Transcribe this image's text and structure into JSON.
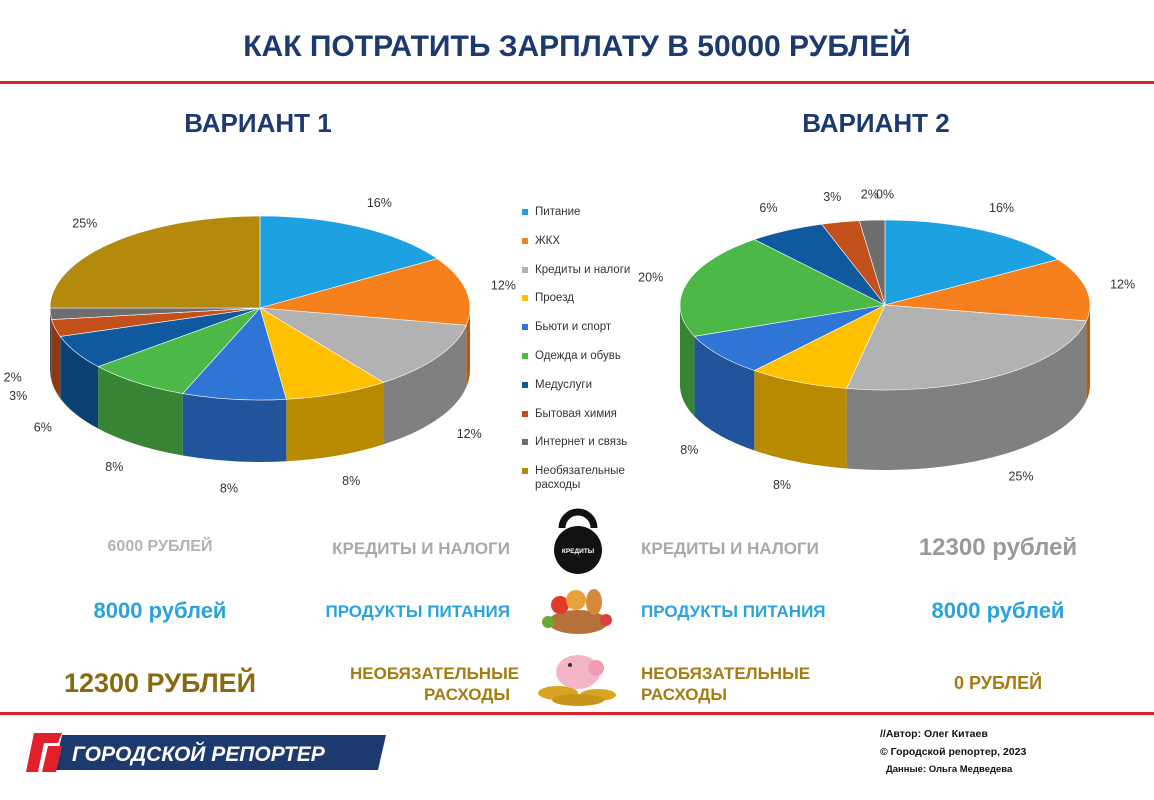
{
  "title": "КАК ПОТРАТИТЬ ЗАРПЛАТУ В 50000 РУБЛЕЙ",
  "chart_data": [
    {
      "type": "pie",
      "title": "ВАРИАНТ 1",
      "categories": [
        "Питание",
        "ЖКХ",
        "Кредиты и налоги",
        "Проезд",
        "Бьюти и спорт",
        "Одежда и обувь",
        "Медуслуги",
        "Бытовая химия",
        "Интернет и связь",
        "Необязательные расходы"
      ],
      "colors": [
        "#1ea1e0",
        "#f7801e",
        "#b2b2b2",
        "#ffc000",
        "#2e75d6",
        "#4cb848",
        "#0f5a9e",
        "#c2501a",
        "#6d6d6d",
        "#b38a0e"
      ],
      "values": [
        16,
        12,
        12,
        8,
        8,
        8,
        6,
        3,
        2,
        25
      ],
      "value_labels": [
        "16%",
        "12%",
        "12%",
        "8%",
        "8%",
        "8%",
        "6%",
        "3%",
        "2%",
        "25%"
      ]
    },
    {
      "type": "pie",
      "title": "ВАРИАНТ 2",
      "values": [
        16,
        12,
        25,
        8,
        8,
        20,
        6,
        3,
        2,
        0
      ],
      "value_labels": [
        "16%",
        "12%",
        "25%",
        "8%",
        "8%",
        "20%",
        "6%",
        "3%",
        "2%",
        "0%"
      ]
    }
  ],
  "comparison": {
    "icon_text": "КРЕДИТЫ",
    "rows": [
      {
        "left_amount": "6000 РУБЛЕЙ",
        "left_label": "КРЕДИТЫ И НАЛОГИ",
        "right_label": "КРЕДИТЫ И НАЛОГИ",
        "right_amount": "12300 рублей"
      },
      {
        "left_amount": "8000 рублей",
        "left_label": "ПРОДУКТЫ ПИТАНИЯ",
        "right_label": "ПРОДУКТЫ ПИТАНИЯ",
        "right_amount": "8000 рублей"
      },
      {
        "left_amount": "12300 РУБЛЕЙ",
        "left_label": "НЕОБЯЗАТЕЛЬНЫЕ РАСХОДЫ",
        "right_label": "НЕОБЯЗАТЕЛЬНЫЕ РАСХОДЫ",
        "right_amount": "0 РУБЛЕЙ"
      }
    ]
  },
  "footer": {
    "logo": "ГОРОДСКОЙ РЕПОРТЕР",
    "credits": [
      "//Автор: Олег Китаев",
      "© Городской репортер, 2023",
      "Данные: Ольга Медведева"
    ]
  }
}
